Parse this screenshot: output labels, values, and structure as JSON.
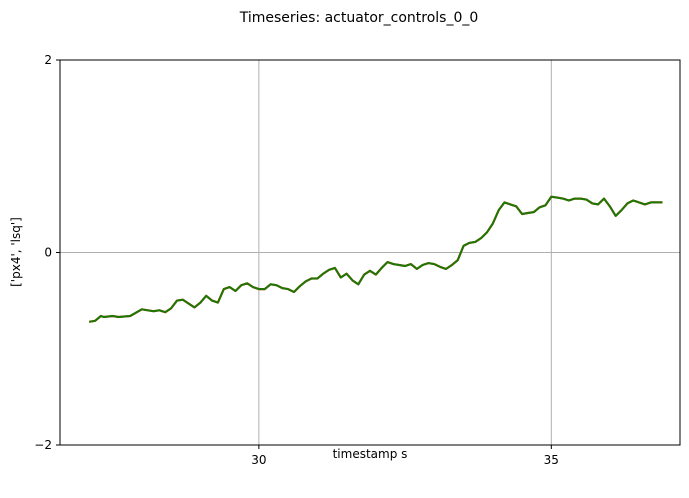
{
  "chart_data": {
    "type": "line",
    "title": "Timeseries: actuator_controls_0_0",
    "xlabel": "timestamp s",
    "ylabel": "['px4', 'lsq']",
    "xlim": [
      26.6,
      37.2
    ],
    "ylim": [
      -2,
      2
    ],
    "xticks": [
      30,
      35
    ],
    "xtick_labels": [
      "30",
      "35"
    ],
    "yticks": [
      -2,
      0,
      2
    ],
    "ytick_labels": [
      "−2",
      "0",
      "2"
    ],
    "grid": true,
    "legend": "none",
    "series": [
      {
        "color_under": "#d62728",
        "color": "#1a7a00",
        "x": [
          27.1,
          27.2,
          27.3,
          27.35,
          27.5,
          27.6,
          27.8,
          28.0,
          28.1,
          28.2,
          28.3,
          28.4,
          28.5,
          28.6,
          28.7,
          28.9,
          29.0,
          29.1,
          29.2,
          29.3,
          29.4,
          29.5,
          29.6,
          29.7,
          29.8,
          29.9,
          30.0,
          30.1,
          30.2,
          30.3,
          30.4,
          30.5,
          30.6,
          30.7,
          30.8,
          30.9,
          31.0,
          31.1,
          31.2,
          31.3,
          31.4,
          31.5,
          31.6,
          31.7,
          31.8,
          31.9,
          32.0,
          32.1,
          32.2,
          32.3,
          32.4,
          32.5,
          32.6,
          32.7,
          32.8,
          32.9,
          33.0,
          33.1,
          33.2,
          33.3,
          33.4,
          33.5,
          33.6,
          33.7,
          33.8,
          33.9,
          34.0,
          34.1,
          34.2,
          34.3,
          34.4,
          34.5,
          34.6,
          34.7,
          34.8,
          34.9,
          35.0,
          35.1,
          35.2,
          35.3,
          35.4,
          35.5,
          35.6,
          35.7,
          35.8,
          35.9,
          36.0,
          36.1,
          36.2,
          36.3,
          36.4,
          36.5,
          36.6,
          36.7,
          36.8,
          36.9
        ],
        "values": [
          -0.72,
          -0.71,
          -0.66,
          -0.67,
          -0.66,
          -0.67,
          -0.66,
          -0.59,
          -0.6,
          -0.61,
          -0.6,
          -0.62,
          -0.58,
          -0.5,
          -0.49,
          -0.57,
          -0.52,
          -0.45,
          -0.5,
          -0.52,
          -0.38,
          -0.36,
          -0.4,
          -0.34,
          -0.32,
          -0.36,
          -0.38,
          -0.38,
          -0.33,
          -0.34,
          -0.37,
          -0.38,
          -0.41,
          -0.35,
          -0.3,
          -0.27,
          -0.27,
          -0.22,
          -0.18,
          -0.16,
          -0.26,
          -0.22,
          -0.29,
          -0.33,
          -0.23,
          -0.19,
          -0.23,
          -0.16,
          -0.1,
          -0.12,
          -0.13,
          -0.14,
          -0.12,
          -0.17,
          -0.13,
          -0.11,
          -0.12,
          -0.15,
          -0.17,
          -0.13,
          -0.08,
          0.07,
          0.1,
          0.11,
          0.15,
          0.21,
          0.3,
          0.44,
          0.52,
          0.5,
          0.48,
          0.4,
          0.41,
          0.42,
          0.47,
          0.49,
          0.58,
          0.57,
          0.56,
          0.54,
          0.56,
          0.56,
          0.55,
          0.51,
          0.5,
          0.56,
          0.48,
          0.38,
          0.44,
          0.51,
          0.54,
          0.52,
          0.5,
          0.52,
          0.52,
          0.52
        ]
      }
    ]
  }
}
